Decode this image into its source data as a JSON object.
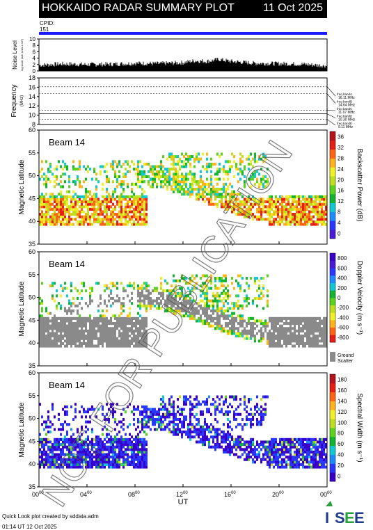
{
  "header": {
    "title": "HOKKAIDO RADAR SUMMARY PLOT",
    "date": "11 Oct 2025"
  },
  "cpid": {
    "label": "CPID:",
    "value": "151"
  },
  "noise_panel": {
    "ylabel": "Noise Level",
    "ylabel_sub": "log scale (arb. units x 10³)",
    "ticks": [
      "0",
      "2",
      "4",
      "6",
      "8",
      "10"
    ]
  },
  "frequency_panel": {
    "ylabel": "Frequency",
    "ylabel_sub": "(MHz)",
    "ticks": [
      "8",
      "10",
      "12",
      "14",
      "16",
      "18"
    ],
    "bands": [
      {
        "name": "freq bandA",
        "value": "16.11 MHz"
      },
      {
        "name": "freq bandB",
        "value": "14.64 MHz"
      },
      {
        "name": "freq bandC",
        "value": "11.07 MHz"
      },
      {
        "name": "freq bandD",
        "value": "10.30 MHz"
      },
      {
        "name": "freq bandE",
        "value": "9.11 MHz"
      }
    ]
  },
  "panels": [
    {
      "beam": "Beam 14",
      "ylabel": "Magnetic Latitude",
      "cbar_label": "Backscatter Power (dB)",
      "cbar_ticks": [
        "0",
        "4",
        "8",
        "12",
        "16",
        "20",
        "24",
        "28",
        "32",
        "36"
      ]
    },
    {
      "beam": "Beam 14",
      "ylabel": "Magnetic Latitude",
      "cbar_label": "Doppler Velocity (m s⁻¹)",
      "cbar_ticks": [
        "-800",
        "-600",
        "-400",
        "-200",
        "0",
        "200",
        "400",
        "600",
        "800"
      ],
      "ground_label": "Ground Scatter"
    },
    {
      "beam": "Beam 14",
      "ylabel": "Magnetic Latitude",
      "cbar_label": "Spectral Width (m s⁻¹)",
      "cbar_ticks": [
        "0",
        "20",
        "40",
        "60",
        "80",
        "100",
        "120",
        "140",
        "160",
        "180"
      ]
    }
  ],
  "lat_ticks": [
    "35",
    "40",
    "45",
    "50",
    "55",
    "60"
  ],
  "x_ticks": [
    "00",
    "04",
    "08",
    "12",
    "16",
    "20",
    "00"
  ],
  "x_tick_sup": "00",
  "xlabel": "UT",
  "watermark": "NOT FOR PUBLICATION",
  "footer": {
    "line1": "Quick Look plot created by sddata.adm",
    "line2": "01:14 UT 12 Oct 2025"
  },
  "logo": {
    "text": "ISEE"
  },
  "chart_data": [
    {
      "type": "line",
      "name": "noise",
      "x_range_hours": [
        0,
        24
      ],
      "ylim": [
        0,
        10
      ],
      "x": [
        0,
        2,
        4,
        6,
        8,
        10,
        12,
        13,
        14,
        15,
        16,
        18,
        20,
        22,
        24
      ],
      "values": [
        1.8,
        2.2,
        2.0,
        2.1,
        2.4,
        2.3,
        2.6,
        3.2,
        3.0,
        3.6,
        3.0,
        2.4,
        2.3,
        2.1,
        1.6
      ]
    },
    {
      "type": "line",
      "name": "frequency",
      "ylim": [
        8,
        18
      ],
      "x_range_hours": [
        0,
        24
      ],
      "bands_mhz": [
        16.11,
        14.64,
        11.07,
        10.3,
        9.11
      ]
    },
    {
      "type": "heatmap",
      "name": "backscatter_power",
      "x_range_hours": [
        0,
        24
      ],
      "ylim": [
        35,
        60
      ],
      "zlim": [
        0,
        36
      ]
    },
    {
      "type": "heatmap",
      "name": "doppler_velocity",
      "x_range_hours": [
        0,
        24
      ],
      "ylim": [
        35,
        60
      ],
      "zlim": [
        -800,
        800
      ]
    },
    {
      "type": "heatmap",
      "name": "spectral_width",
      "x_range_hours": [
        0,
        24
      ],
      "ylim": [
        35,
        60
      ],
      "zlim": [
        0,
        180
      ]
    }
  ]
}
